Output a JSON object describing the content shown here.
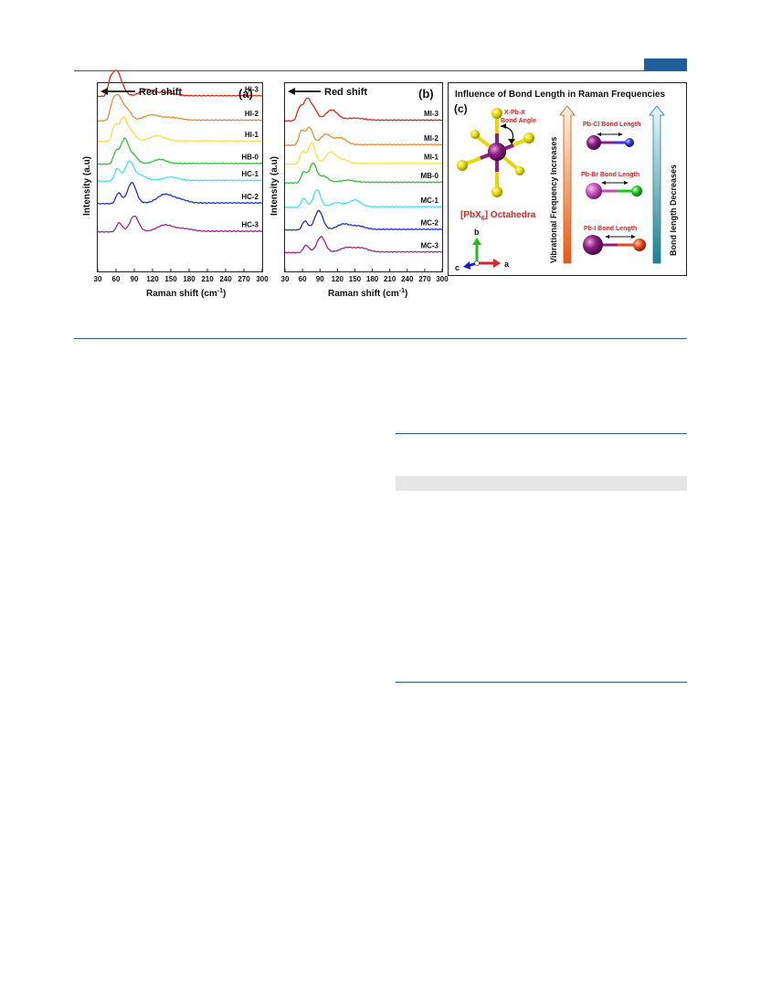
{
  "header": {
    "accent_color": "#1f5e99"
  },
  "figure": {
    "panel_a": {
      "tag": "(a)",
      "arrow_label": "Red shift",
      "ylabel": "Intensity (a.u)",
      "xlabel_main": "Raman shift (cm",
      "xlabel_sup": "-1",
      "xlabel_end": ")"
    },
    "panel_b": {
      "tag": "(b)",
      "arrow_label": "Red shift",
      "ylabel": "Intensity (a.u)",
      "xlabel_main": "Raman shift (cm",
      "xlabel_sup": "-1",
      "xlabel_end": ")"
    },
    "panel_c": {
      "tag": "(c)",
      "title": "Influence of Bond Length in Raman Frequencies",
      "angle_label_1": "X-Pb-X",
      "angle_label_2": "Bond Angle",
      "octa_label_pre": "[PbX",
      "octa_label_sub": "6",
      "octa_label_post": "] Octahedra",
      "axis_b": "b",
      "axis_a": "a",
      "axis_c": "c",
      "left_arrow_label": "Vibrational Frequency Increases",
      "right_arrow_label": "Bond length Decreases",
      "bond_labels": [
        "Pb-Cl Bond Length",
        "Pb-Br Bond Length",
        "Pb-I Bond Length"
      ]
    }
  },
  "chart_data": [
    {
      "type": "line",
      "panel": "(a)",
      "xlabel": "Raman shift (cm-1)",
      "ylabel": "Intensity (a.u)",
      "xlim": [
        30,
        300
      ],
      "xticks": [
        30,
        60,
        90,
        120,
        150,
        180,
        210,
        240,
        270,
        300
      ],
      "annotation": "Red shift",
      "series": [
        {
          "name": "HI-3",
          "color": "#e8241c",
          "baseline": 0.07,
          "peaks": [
            [
              52,
              0.55,
              6
            ],
            [
              62,
              0.5,
              5
            ],
            [
              70,
              0.25,
              6
            ],
            [
              110,
              0.18,
              10
            ],
            [
              140,
              0.1,
              14
            ]
          ]
        },
        {
          "name": "HI-2",
          "color": "#f08a2c",
          "baseline": 0.2,
          "peaks": [
            [
              55,
              0.5,
              6
            ],
            [
              65,
              0.55,
              6
            ],
            [
              78,
              0.3,
              7
            ],
            [
              118,
              0.15,
              12
            ],
            [
              150,
              0.08,
              15
            ]
          ]
        },
        {
          "name": "HI-1",
          "color": "#f5e33a",
          "baseline": 0.31,
          "peaks": [
            [
              58,
              0.45,
              5
            ],
            [
              72,
              0.65,
              6
            ],
            [
              85,
              0.25,
              7
            ],
            [
              128,
              0.15,
              12
            ]
          ]
        },
        {
          "name": "HB-0",
          "color": "#2ec03a",
          "baseline": 0.43,
          "peaks": [
            [
              60,
              0.35,
              5
            ],
            [
              74,
              0.7,
              6
            ],
            [
              88,
              0.25,
              7
            ],
            [
              132,
              0.12,
              10
            ]
          ]
        },
        {
          "name": "HC-1",
          "color": "#3fe6ea",
          "baseline": 0.52,
          "peaks": [
            [
              62,
              0.35,
              5
            ],
            [
              82,
              0.55,
              7
            ],
            [
              100,
              0.15,
              9
            ],
            [
              150,
              0.1,
              12
            ]
          ]
        },
        {
          "name": "HC-2",
          "color": "#1f2fd1",
          "baseline": 0.64,
          "peaks": [
            [
              64,
              0.3,
              5
            ],
            [
              86,
              0.6,
              7
            ],
            [
              140,
              0.25,
              12
            ],
            [
              165,
              0.1,
              12
            ]
          ]
        },
        {
          "name": "HC-3",
          "color": "#a0258f",
          "baseline": 0.79,
          "peaks": [
            [
              65,
              0.25,
              5
            ],
            [
              90,
              0.45,
              7
            ],
            [
              140,
              0.18,
              12
            ],
            [
              170,
              0.08,
              14
            ]
          ]
        }
      ]
    },
    {
      "type": "line",
      "panel": "(b)",
      "xlabel": "Raman shift (cm-1)",
      "ylabel": "Intensity (a.u)",
      "xlim": [
        30,
        300
      ],
      "xticks": [
        30,
        60,
        90,
        120,
        150,
        180,
        210,
        240,
        270,
        300
      ],
      "annotation": "Red shift",
      "series": [
        {
          "name": "MI-3",
          "color": "#e8241c",
          "baseline": 0.2,
          "peaks": [
            [
              55,
              0.35,
              5
            ],
            [
              68,
              0.6,
              6
            ],
            [
              80,
              0.3,
              6
            ],
            [
              110,
              0.3,
              10
            ],
            [
              150,
              0.06,
              15
            ]
          ]
        },
        {
          "name": "MI-2",
          "color": "#f08a2c",
          "baseline": 0.33,
          "peaks": [
            [
              58,
              0.4,
              5
            ],
            [
              72,
              0.5,
              6
            ],
            [
              100,
              0.3,
              9
            ],
            [
              125,
              0.2,
              10
            ]
          ]
        },
        {
          "name": "MI-1",
          "color": "#f5e33a",
          "baseline": 0.43,
          "peaks": [
            [
              60,
              0.35,
              5
            ],
            [
              76,
              0.6,
              6
            ],
            [
              108,
              0.32,
              8
            ],
            [
              128,
              0.12,
              10
            ]
          ]
        },
        {
          "name": "MB-0",
          "color": "#2ec03a",
          "baseline": 0.53,
          "peaks": [
            [
              62,
              0.3,
              5
            ],
            [
              78,
              0.55,
              6
            ],
            [
              96,
              0.18,
              8
            ],
            [
              138,
              0.06,
              12
            ]
          ]
        },
        {
          "name": "MC-1",
          "color": "#3fe6ea",
          "baseline": 0.66,
          "peaks": [
            [
              62,
              0.25,
              5
            ],
            [
              85,
              0.5,
              6
            ],
            [
              120,
              0.12,
              10
            ],
            [
              150,
              0.2,
              10
            ]
          ]
        },
        {
          "name": "MC-2",
          "color": "#1f2fd1",
          "baseline": 0.78,
          "peaks": [
            [
              64,
              0.25,
              5
            ],
            [
              88,
              0.55,
              7
            ],
            [
              130,
              0.15,
              10
            ],
            [
              155,
              0.1,
              12
            ]
          ]
        },
        {
          "name": "MC-3",
          "color": "#a0258f",
          "baseline": 0.9,
          "peaks": [
            [
              66,
              0.2,
              5
            ],
            [
              92,
              0.45,
              7
            ],
            [
              135,
              0.12,
              10
            ],
            [
              160,
              0.12,
              12
            ]
          ]
        }
      ]
    }
  ]
}
